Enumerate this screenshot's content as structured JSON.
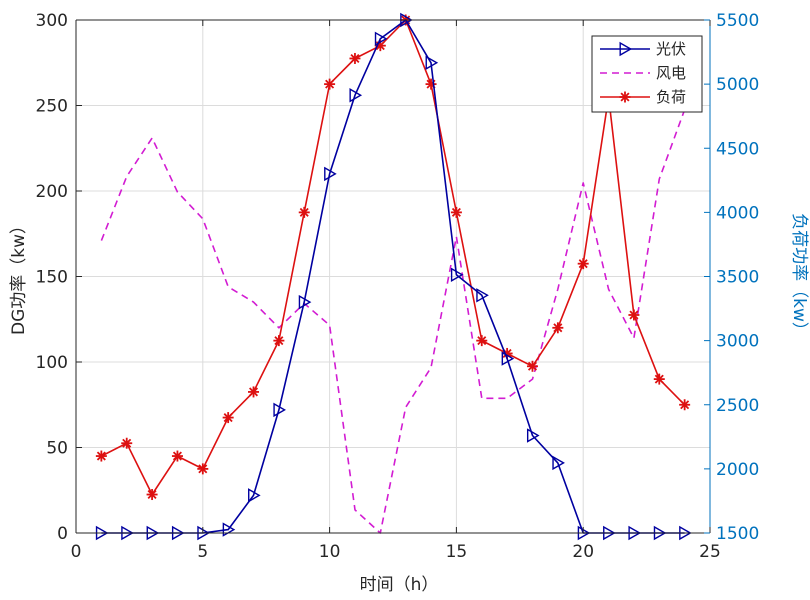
{
  "chart_data": {
    "type": "line",
    "xlabel": "时间（h）",
    "ylabel_left": "DG功率（kw）",
    "ylabel_right": "负荷功率（kw）",
    "xlim": [
      0,
      25
    ],
    "ylim_left": [
      0,
      300
    ],
    "ylim_right": [
      1500,
      5500
    ],
    "x_ticks": [
      0,
      5,
      10,
      15,
      20,
      25
    ],
    "y_ticks_left": [
      0,
      50,
      100,
      150,
      200,
      250,
      300
    ],
    "y_ticks_right": [
      1500,
      2000,
      2500,
      3000,
      3500,
      4000,
      4500,
      5000,
      5500
    ],
    "grid": true,
    "legend_position": "top-right",
    "x": [
      1,
      2,
      3,
      4,
      5,
      6,
      7,
      8,
      9,
      10,
      11,
      12,
      13,
      14,
      15,
      16,
      17,
      18,
      19,
      20,
      21,
      22,
      23,
      24
    ],
    "series": [
      {
        "name": "光伏",
        "axis": "left",
        "color": "#0000a0",
        "marker": "triangle-right",
        "line_style": "solid",
        "values": [
          0,
          0,
          0,
          0,
          0,
          2,
          22,
          72,
          135,
          210,
          256,
          289,
          300,
          275,
          151,
          139,
          102,
          57,
          41,
          0,
          0,
          0,
          0,
          0
        ]
      },
      {
        "name": "风电",
        "axis": "right",
        "color": "#d21cd2",
        "marker": "none",
        "line_style": "dashed",
        "values": [
          3780,
          4280,
          4580,
          4160,
          3950,
          3420,
          3300,
          3100,
          3290,
          3120,
          1680,
          1500,
          2480,
          2790,
          3810,
          2550,
          2550,
          2700,
          3400,
          4230,
          3400,
          3020,
          4260,
          4800
        ]
      },
      {
        "name": "负荷",
        "axis": "right",
        "color": "#dd1111",
        "marker": "asterisk",
        "line_style": "solid",
        "values": [
          2100,
          2200,
          1800,
          2100,
          2000,
          2400,
          2600,
          3000,
          4000,
          5000,
          5200,
          5300,
          5500,
          5000,
          4000,
          3000,
          2900,
          2800,
          3100,
          3600,
          4900,
          3200,
          2700,
          2500
        ]
      }
    ]
  }
}
